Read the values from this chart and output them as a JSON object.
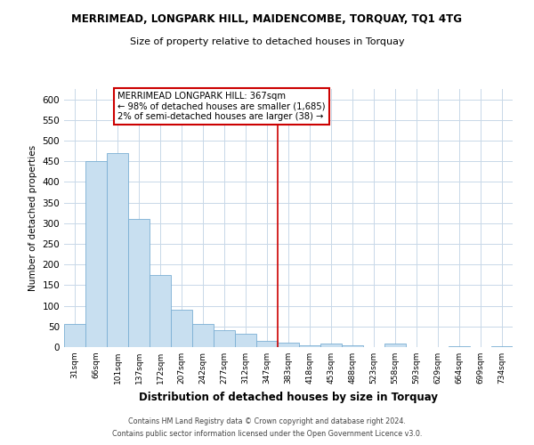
{
  "title": "MERRIMEAD, LONGPARK HILL, MAIDENCOMBE, TORQUAY, TQ1 4TG",
  "subtitle": "Size of property relative to detached houses in Torquay",
  "xlabel": "Distribution of detached houses by size in Torquay",
  "ylabel": "Number of detached properties",
  "bin_labels": [
    "31sqm",
    "66sqm",
    "101sqm",
    "137sqm",
    "172sqm",
    "207sqm",
    "242sqm",
    "277sqm",
    "312sqm",
    "347sqm",
    "383sqm",
    "418sqm",
    "453sqm",
    "488sqm",
    "523sqm",
    "558sqm",
    "593sqm",
    "629sqm",
    "664sqm",
    "699sqm",
    "734sqm"
  ],
  "bar_heights": [
    55,
    450,
    470,
    310,
    175,
    90,
    57,
    42,
    32,
    15,
    10,
    4,
    8,
    4,
    0,
    8,
    0,
    0,
    3,
    0,
    2
  ],
  "bar_color": "#c8dff0",
  "bar_edge_color": "#7bafd4",
  "vline_x": 9.5,
  "vline_color": "#cc0000",
  "annotation_text": "MERRIMEAD LONGPARK HILL: 367sqm\n← 98% of detached houses are smaller (1,685)\n2% of semi-detached houses are larger (38) →",
  "annotation_box_color": "#ffffff",
  "annotation_box_edge": "#cc0000",
  "ylim": [
    0,
    625
  ],
  "yticks": [
    0,
    50,
    100,
    150,
    200,
    250,
    300,
    350,
    400,
    450,
    500,
    550,
    600
  ],
  "footer_line1": "Contains HM Land Registry data © Crown copyright and database right 2024.",
  "footer_line2": "Contains public sector information licensed under the Open Government Licence v3.0.",
  "bg_color": "#ffffff",
  "grid_color": "#c8d8e8"
}
